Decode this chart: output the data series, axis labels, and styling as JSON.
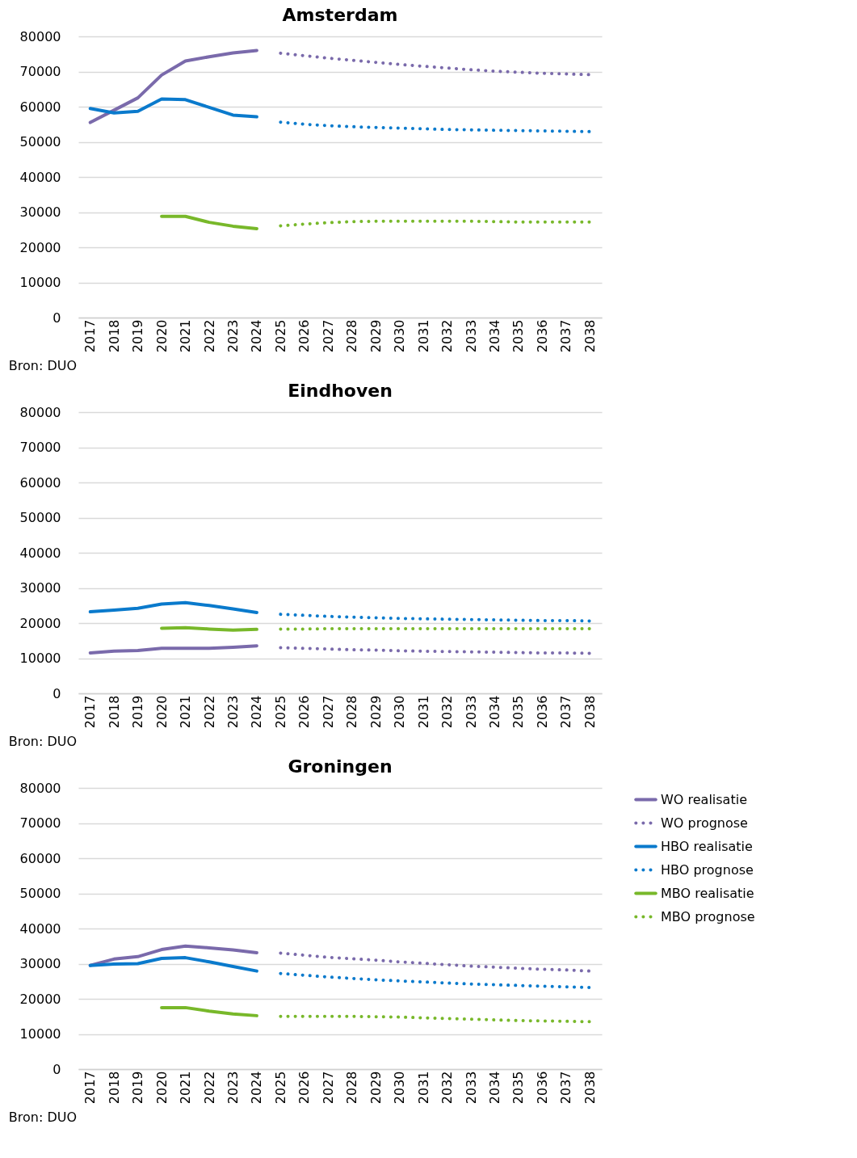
{
  "chart_data": [
    {
      "type": "line",
      "title": "Amsterdam",
      "categories": [
        "2017",
        "2018",
        "2019",
        "2020",
        "2021",
        "2022",
        "2023",
        "2024",
        "2025",
        "2026",
        "2027",
        "2028",
        "2029",
        "2030",
        "2031",
        "2032",
        "2033",
        "2034",
        "2035",
        "2036",
        "2037",
        "2038"
      ],
      "ylim": [
        0,
        80000
      ],
      "yticks": [
        0,
        10000,
        20000,
        30000,
        40000,
        50000,
        60000,
        70000,
        80000
      ],
      "grid": "y",
      "annotations": [
        "Bron: DUO"
      ],
      "series": [
        {
          "color": "#7a6aab",
          "line_style": "solid",
          "values": [
            55500,
            59000,
            62500,
            69000,
            73000,
            74200,
            75300,
            76000,
            null,
            null,
            null,
            null,
            null,
            null,
            null,
            null,
            null,
            null,
            null,
            null,
            null,
            null
          ]
        },
        {
          "color": "#7a6aab",
          "line_style": "dotted",
          "values": [
            null,
            null,
            null,
            null,
            null,
            null,
            null,
            null,
            75200,
            74500,
            73800,
            73200,
            72600,
            72000,
            71500,
            71000,
            70500,
            70100,
            69800,
            69500,
            69300,
            69100
          ]
        },
        {
          "color": "#0a7acc",
          "line_style": "solid",
          "values": [
            59500,
            58200,
            58700,
            62200,
            62000,
            59800,
            57600,
            57100,
            null,
            null,
            null,
            null,
            null,
            null,
            null,
            null,
            null,
            null,
            null,
            null,
            null,
            null
          ]
        },
        {
          "color": "#0a7acc",
          "line_style": "dotted",
          "values": [
            null,
            null,
            null,
            null,
            null,
            null,
            null,
            null,
            55600,
            55000,
            54600,
            54300,
            54100,
            53900,
            53700,
            53500,
            53400,
            53300,
            53200,
            53100,
            53000,
            52900
          ]
        },
        {
          "color": "#78b82a",
          "line_style": "solid",
          "values": [
            null,
            null,
            null,
            28800,
            28800,
            27100,
            26000,
            25300,
            null,
            null,
            null,
            null,
            null,
            null,
            null,
            null,
            null,
            null,
            null,
            null,
            null,
            null
          ]
        },
        {
          "color": "#78b82a",
          "line_style": "dotted",
          "values": [
            null,
            null,
            null,
            null,
            null,
            null,
            null,
            null,
            26100,
            26600,
            27000,
            27300,
            27400,
            27400,
            27400,
            27400,
            27400,
            27300,
            27200,
            27200,
            27200,
            27200
          ]
        }
      ]
    },
    {
      "type": "line",
      "title": "Eindhoven",
      "categories": [
        "2017",
        "2018",
        "2019",
        "2020",
        "2021",
        "2022",
        "2023",
        "2024",
        "2025",
        "2026",
        "2027",
        "2028",
        "2029",
        "2030",
        "2031",
        "2032",
        "2033",
        "2034",
        "2035",
        "2036",
        "2037",
        "2038"
      ],
      "ylim": [
        0,
        80000
      ],
      "yticks": [
        0,
        10000,
        20000,
        30000,
        40000,
        50000,
        60000,
        70000,
        80000
      ],
      "grid": "y",
      "annotations": [
        "Bron: DUO"
      ],
      "series": [
        {
          "color": "#7a6aab",
          "line_style": "solid",
          "values": [
            11500,
            12000,
            12200,
            12800,
            12800,
            12800,
            13100,
            13500,
            null,
            null,
            null,
            null,
            null,
            null,
            null,
            null,
            null,
            null,
            null,
            null,
            null,
            null
          ]
        },
        {
          "color": "#7a6aab",
          "line_style": "dotted",
          "values": [
            null,
            null,
            null,
            null,
            null,
            null,
            null,
            null,
            13000,
            12800,
            12600,
            12400,
            12300,
            12100,
            12000,
            11900,
            11800,
            11700,
            11600,
            11500,
            11500,
            11400
          ]
        },
        {
          "color": "#0a7acc",
          "line_style": "solid",
          "values": [
            23200,
            23700,
            24200,
            25400,
            25800,
            25000,
            24000,
            23000,
            null,
            null,
            null,
            null,
            null,
            null,
            null,
            null,
            null,
            null,
            null,
            null,
            null,
            null
          ]
        },
        {
          "color": "#0a7acc",
          "line_style": "dotted",
          "values": [
            null,
            null,
            null,
            null,
            null,
            null,
            null,
            null,
            22500,
            22200,
            21900,
            21700,
            21500,
            21300,
            21200,
            21100,
            21000,
            20900,
            20800,
            20700,
            20700,
            20600
          ]
        },
        {
          "color": "#78b82a",
          "line_style": "solid",
          "values": [
            null,
            null,
            null,
            18500,
            18700,
            18300,
            18000,
            18200,
            null,
            null,
            null,
            null,
            null,
            null,
            null,
            null,
            null,
            null,
            null,
            null,
            null,
            null
          ]
        },
        {
          "color": "#78b82a",
          "line_style": "dotted",
          "values": [
            null,
            null,
            null,
            null,
            null,
            null,
            null,
            null,
            18300,
            18300,
            18400,
            18400,
            18400,
            18400,
            18400,
            18400,
            18400,
            18400,
            18400,
            18400,
            18400,
            18400
          ]
        }
      ]
    },
    {
      "type": "line",
      "title": "Groningen",
      "categories": [
        "2017",
        "2018",
        "2019",
        "2020",
        "2021",
        "2022",
        "2023",
        "2024",
        "2025",
        "2026",
        "2027",
        "2028",
        "2029",
        "2030",
        "2031",
        "2032",
        "2033",
        "2034",
        "2035",
        "2036",
        "2037",
        "2038"
      ],
      "ylim": [
        0,
        80000
      ],
      "yticks": [
        0,
        10000,
        20000,
        30000,
        40000,
        50000,
        60000,
        70000,
        80000
      ],
      "grid": "y",
      "legend": "right",
      "annotations": [
        "Bron: DUO"
      ],
      "series": [
        {
          "name": "WO realisatie",
          "color": "#7a6aab",
          "line_style": "solid",
          "values": [
            29500,
            31300,
            32000,
            34000,
            35000,
            34500,
            33900,
            33100,
            null,
            null,
            null,
            null,
            null,
            null,
            null,
            null,
            null,
            null,
            null,
            null,
            null,
            null
          ]
        },
        {
          "name": "WO prognose",
          "color": "#7a6aab",
          "line_style": "dotted",
          "values": [
            null,
            null,
            null,
            null,
            null,
            null,
            null,
            null,
            33000,
            32400,
            31800,
            31400,
            31000,
            30500,
            30100,
            29700,
            29300,
            29000,
            28700,
            28400,
            28200,
            27900
          ]
        },
        {
          "name": "HBO realisatie",
          "color": "#0a7acc",
          "line_style": "solid",
          "values": [
            29500,
            29900,
            30000,
            31500,
            31700,
            30500,
            29200,
            27900,
            null,
            null,
            null,
            null,
            null,
            null,
            null,
            null,
            null,
            null,
            null,
            null,
            null,
            null
          ]
        },
        {
          "name": "HBO prognose",
          "color": "#0a7acc",
          "line_style": "dotted",
          "values": [
            null,
            null,
            null,
            null,
            null,
            null,
            null,
            null,
            27200,
            26700,
            26200,
            25800,
            25400,
            25100,
            24800,
            24500,
            24200,
            24000,
            23800,
            23600,
            23400,
            23200
          ]
        },
        {
          "name": "MBO realisatie",
          "color": "#78b82a",
          "line_style": "solid",
          "values": [
            null,
            null,
            null,
            17500,
            17500,
            16500,
            15700,
            15200,
            null,
            null,
            null,
            null,
            null,
            null,
            null,
            null,
            null,
            null,
            null,
            null,
            null,
            null
          ]
        },
        {
          "name": "MBO prognose",
          "color": "#78b82a",
          "line_style": "dotted",
          "values": [
            null,
            null,
            null,
            null,
            null,
            null,
            null,
            null,
            15000,
            15000,
            15000,
            15000,
            14900,
            14800,
            14600,
            14400,
            14200,
            14000,
            13800,
            13700,
            13600,
            13500
          ]
        }
      ]
    }
  ]
}
